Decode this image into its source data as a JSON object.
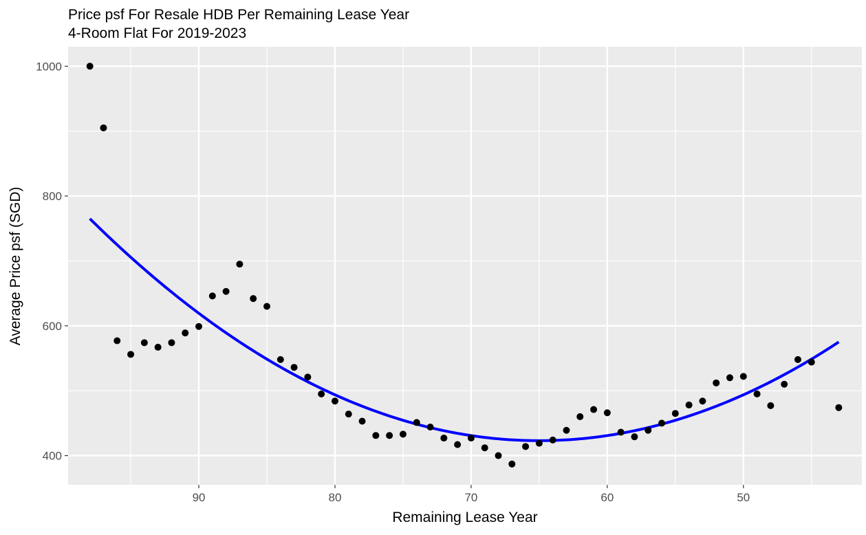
{
  "chart_data": {
    "type": "scatter",
    "title": "Price psf For Resale HDB Per Remaining Lease Year",
    "subtitle": "4-Room Flat For 2019-2023",
    "xlabel": "Remaining Lease Year",
    "ylabel": "Average Price psf (SGD)",
    "x_reversed": true,
    "xlim": [
      41.3,
      99.6
    ],
    "ylim": [
      355,
      1030
    ],
    "x_ticks": [
      90,
      80,
      70,
      60,
      50
    ],
    "y_ticks": [
      400,
      600,
      800,
      1000
    ],
    "grid": true,
    "point_color": "#000000",
    "points": [
      {
        "x": 98,
        "y": 1000
      },
      {
        "x": 97,
        "y": 905
      },
      {
        "x": 96,
        "y": 577
      },
      {
        "x": 95,
        "y": 556
      },
      {
        "x": 94,
        "y": 574
      },
      {
        "x": 93,
        "y": 567
      },
      {
        "x": 92,
        "y": 574
      },
      {
        "x": 91,
        "y": 589
      },
      {
        "x": 90,
        "y": 599
      },
      {
        "x": 89,
        "y": 646
      },
      {
        "x": 88,
        "y": 653
      },
      {
        "x": 87,
        "y": 695
      },
      {
        "x": 86,
        "y": 642
      },
      {
        "x": 85,
        "y": 630
      },
      {
        "x": 84,
        "y": 548
      },
      {
        "x": 83,
        "y": 536
      },
      {
        "x": 82,
        "y": 521
      },
      {
        "x": 81,
        "y": 495
      },
      {
        "x": 80,
        "y": 484
      },
      {
        "x": 79,
        "y": 464
      },
      {
        "x": 78,
        "y": 453
      },
      {
        "x": 77,
        "y": 431
      },
      {
        "x": 76,
        "y": 431
      },
      {
        "x": 75,
        "y": 433
      },
      {
        "x": 74,
        "y": 451
      },
      {
        "x": 73,
        "y": 444
      },
      {
        "x": 72,
        "y": 427
      },
      {
        "x": 71,
        "y": 417
      },
      {
        "x": 70,
        "y": 427
      },
      {
        "x": 69,
        "y": 412
      },
      {
        "x": 68,
        "y": 400
      },
      {
        "x": 67,
        "y": 387
      },
      {
        "x": 66,
        "y": 414
      },
      {
        "x": 65,
        "y": 419
      },
      {
        "x": 64,
        "y": 424
      },
      {
        "x": 63,
        "y": 439
      },
      {
        "x": 62,
        "y": 460
      },
      {
        "x": 61,
        "y": 471
      },
      {
        "x": 60,
        "y": 466
      },
      {
        "x": 59,
        "y": 436
      },
      {
        "x": 58,
        "y": 429
      },
      {
        "x": 57,
        "y": 439
      },
      {
        "x": 56,
        "y": 450
      },
      {
        "x": 55,
        "y": 465
      },
      {
        "x": 54,
        "y": 478
      },
      {
        "x": 53,
        "y": 484
      },
      {
        "x": 52,
        "y": 512
      },
      {
        "x": 51,
        "y": 520
      },
      {
        "x": 50,
        "y": 522
      },
      {
        "x": 49,
        "y": 495
      },
      {
        "x": 48,
        "y": 477
      },
      {
        "x": 47,
        "y": 510
      },
      {
        "x": 46,
        "y": 548
      },
      {
        "x": 45,
        "y": 544
      },
      {
        "x": 43,
        "y": 474
      }
    ],
    "trend": {
      "type": "quadratic",
      "color": "#0000ff",
      "x_range": [
        43,
        98
      ],
      "vertex_x": 65,
      "vertex_y": 423,
      "a": 0.3141
    }
  }
}
